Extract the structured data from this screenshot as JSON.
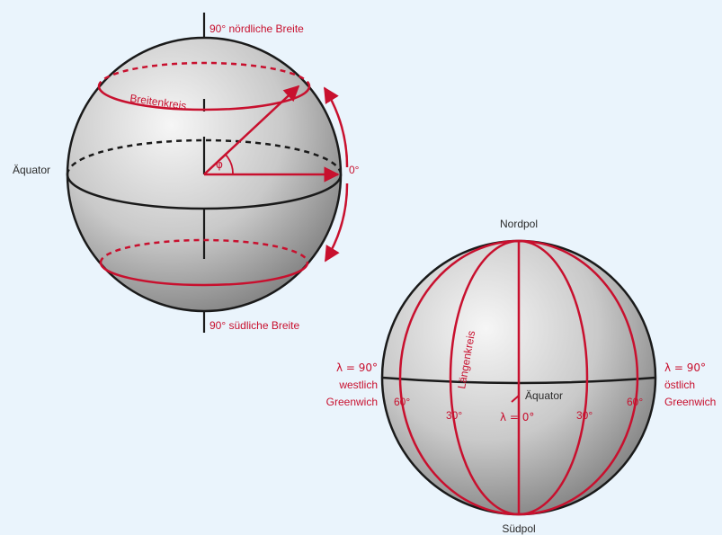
{
  "colors": {
    "background": "#eaf4fc",
    "accent": "#c8102e",
    "outline": "#1a1a1a",
    "sphere_light": "#f2f2f2",
    "sphere_dark": "#8c8c8c"
  },
  "latitude": {
    "north_label": "90° nördliche Breite",
    "south_label": "90° südliche Breite",
    "equator_label": "Äquator",
    "circle_label": "Breitenkreis",
    "phi": "φ",
    "zero": "0°"
  },
  "longitude": {
    "north_pole": "Nordpol",
    "south_pole": "Südpol",
    "meridian_label": "Längenkreis",
    "equator_label": "Äquator",
    "west": [
      "λ = 90°",
      "westlich",
      "Greenwich"
    ],
    "east": [
      "λ = 90°",
      "östlich",
      "Greenwich"
    ],
    "ticks": {
      "w60": "60°",
      "w30": "30°",
      "zero": "λ = 0°",
      "e30": "30°",
      "e60": "60°"
    }
  }
}
